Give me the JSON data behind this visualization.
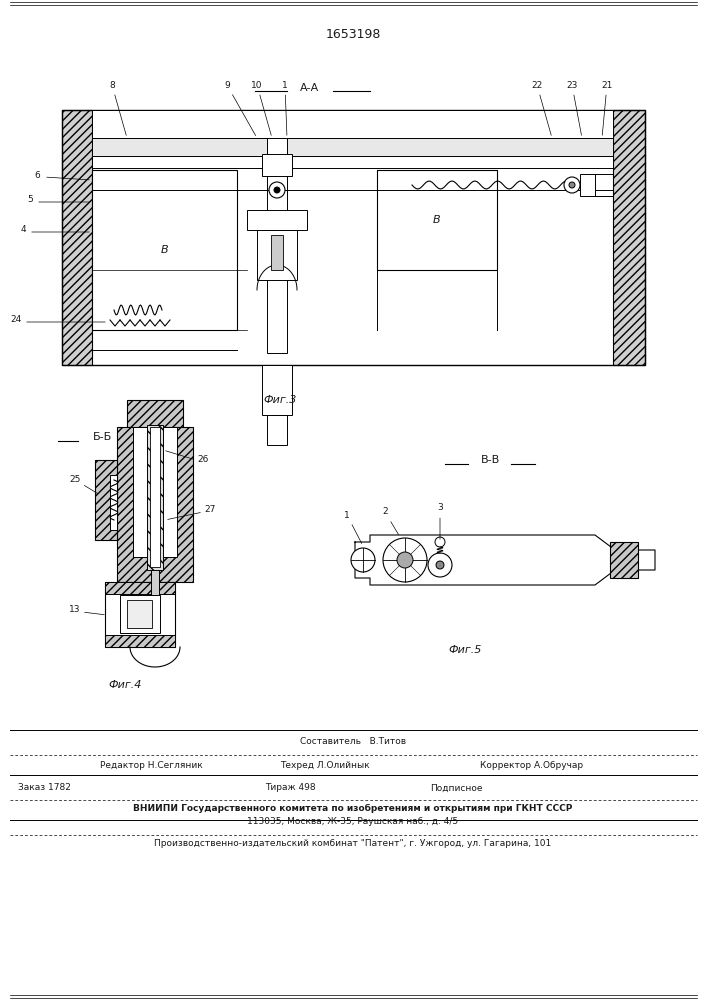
{
  "title": "1653198",
  "background_color": "#ffffff",
  "text_color": "#1a1a1a",
  "fig3_caption": "Фиг.3",
  "fig4_caption": "Фиг.4",
  "fig5_caption": "Фиг.5",
  "fig4_section_label": "Б-Б",
  "fig5_section_label": "В-В",
  "fig3_section_label": "А-А",
  "footer_sestavitel": "Составитель   В.Титов",
  "footer_redaktor": "Редактор Н.Сегляник",
  "footer_tehred": "Техред Л.Олийнык",
  "footer_korrektor": "Корректор А.Обручар",
  "footer_zakaz": "Заказ 1782",
  "footer_tirazh": "Тираж 498",
  "footer_podpisnoe": "Подписное",
  "footer_vniipи": "ВНИИПИ Государственного комитета по изобретениям и открытиям при ГКНТ СССР",
  "footer_addr": "113035, Москва, Ж-35, Раушская наб., д. 4/5",
  "footer_patent": "Производственно-издательский комбинат \"Патент\", г. Ужгород, ул. Гагарина, 101"
}
